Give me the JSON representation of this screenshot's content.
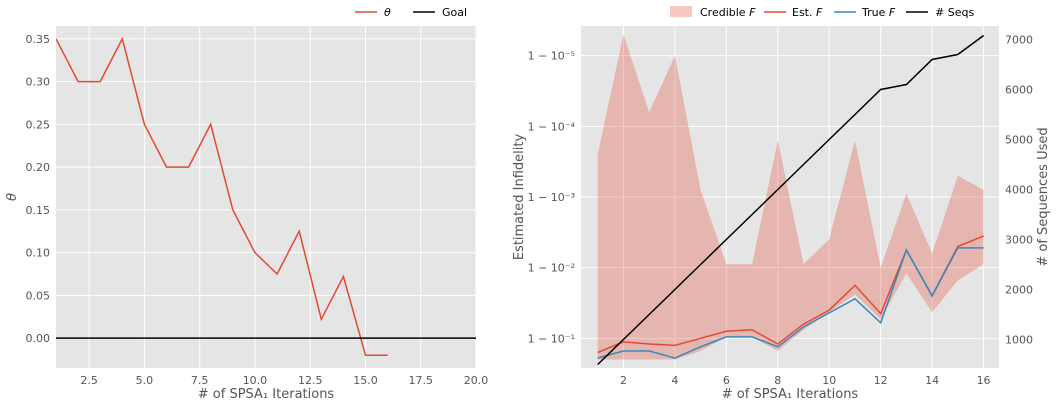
{
  "chart_data": [
    {
      "type": "line",
      "xlabel": "# of SPSA₁ Iterations",
      "ylabel": "θ",
      "xlim": [
        1,
        20
      ],
      "ylim": [
        -0.035,
        0.365
      ],
      "xticks": [
        "2.5",
        "5.0",
        "7.5",
        "10.0",
        "12.5",
        "15.0",
        "17.5",
        "20.0"
      ],
      "yticks": [
        "0.00",
        "0.05",
        "0.10",
        "0.15",
        "0.20",
        "0.25",
        "0.30",
        "0.35"
      ],
      "grid": true,
      "legend_placement": "top-right, outside",
      "series": [
        {
          "name": "θ",
          "color": "#E24A33",
          "x": [
            1,
            2,
            3,
            4,
            5,
            6,
            7,
            8,
            9,
            10,
            11,
            12,
            13,
            14,
            15,
            16
          ],
          "y": [
            0.35,
            0.3,
            0.3,
            0.35,
            0.25,
            0.2,
            0.2,
            0.25,
            0.15,
            0.1,
            0.075,
            0.125,
            0.022,
            0.072,
            -0.02,
            -0.02
          ]
        },
        {
          "name": "Goal",
          "color": "#000000",
          "x": [
            1,
            20
          ],
          "y": [
            0,
            0
          ]
        }
      ]
    },
    {
      "type": "line",
      "xlabel": "# of SPSA₁ Iterations",
      "ylabel": "Estimated Infidelity",
      "ylabel_right": "# of Sequences Used",
      "xlim": [
        0.35,
        16.6
      ],
      "ylim_exponent": [
        -0.58,
        -5.42
      ],
      "ylim_right": [
        430,
        7270
      ],
      "xticks": [
        "2",
        "4",
        "6",
        "8",
        "10",
        "12",
        "14",
        "16"
      ],
      "yticks": [
        "1 − 10⁻¹",
        "1 − 10⁻²",
        "1 − 10⁻³",
        "1 − 10⁻⁴",
        "1 − 10⁻⁵"
      ],
      "yticks_right": [
        "1000",
        "2000",
        "3000",
        "4000",
        "5000",
        "6000",
        "7000"
      ],
      "grid": true,
      "legend_placement": "top-right, outside",
      "legend": [
        "Credible F",
        "Est. F",
        "True F",
        "# Seqs"
      ],
      "x": [
        1,
        2,
        3,
        4,
        5,
        6,
        7,
        8,
        9,
        10,
        11,
        12,
        13,
        14,
        15,
        16
      ],
      "credible_band": {
        "name": "Credible F",
        "color": "#E24A33",
        "upper_exponent": [
          -3.6,
          -5.3,
          -4.2,
          -5.0,
          -3.1,
          -2.05,
          -2.05,
          -3.8,
          -2.05,
          -2.4,
          -3.8,
          -2.0,
          -3.05,
          -2.2,
          -3.3,
          -3.1
        ],
        "lower_exponent": [
          -0.7,
          -0.7,
          -0.7,
          -0.7,
          -0.82,
          -1.02,
          -1.02,
          -0.82,
          -1.12,
          -1.37,
          -1.62,
          -1.27,
          -1.92,
          -1.37,
          -1.82,
          -2.05
        ]
      },
      "series": [
        {
          "name": "Est. F",
          "color": "#E24A33",
          "axis": "left",
          "exponent": [
            -0.8,
            -0.95,
            -0.92,
            -0.9,
            -1.0,
            -1.1,
            -1.12,
            -0.92,
            -1.2,
            -1.4,
            -1.75,
            -1.35,
            -2.25,
            -1.6,
            -2.3,
            -2.45
          ]
        },
        {
          "name": "True F",
          "color": "#348ABD",
          "axis": "left",
          "exponent": [
            -0.72,
            -0.82,
            -0.82,
            -0.72,
            -0.88,
            -1.02,
            -1.02,
            -0.88,
            -1.16,
            -1.36,
            -1.56,
            -1.22,
            -2.25,
            -1.6,
            -2.28,
            -2.28
          ]
        },
        {
          "name": "# Seqs",
          "color": "#000000",
          "axis": "right",
          "values": [
            500,
            1000,
            1500,
            2000,
            2500,
            3000,
            3500,
            4000,
            4500,
            5000,
            5500,
            6000,
            6100,
            6600,
            6700,
            7080
          ]
        }
      ]
    }
  ]
}
